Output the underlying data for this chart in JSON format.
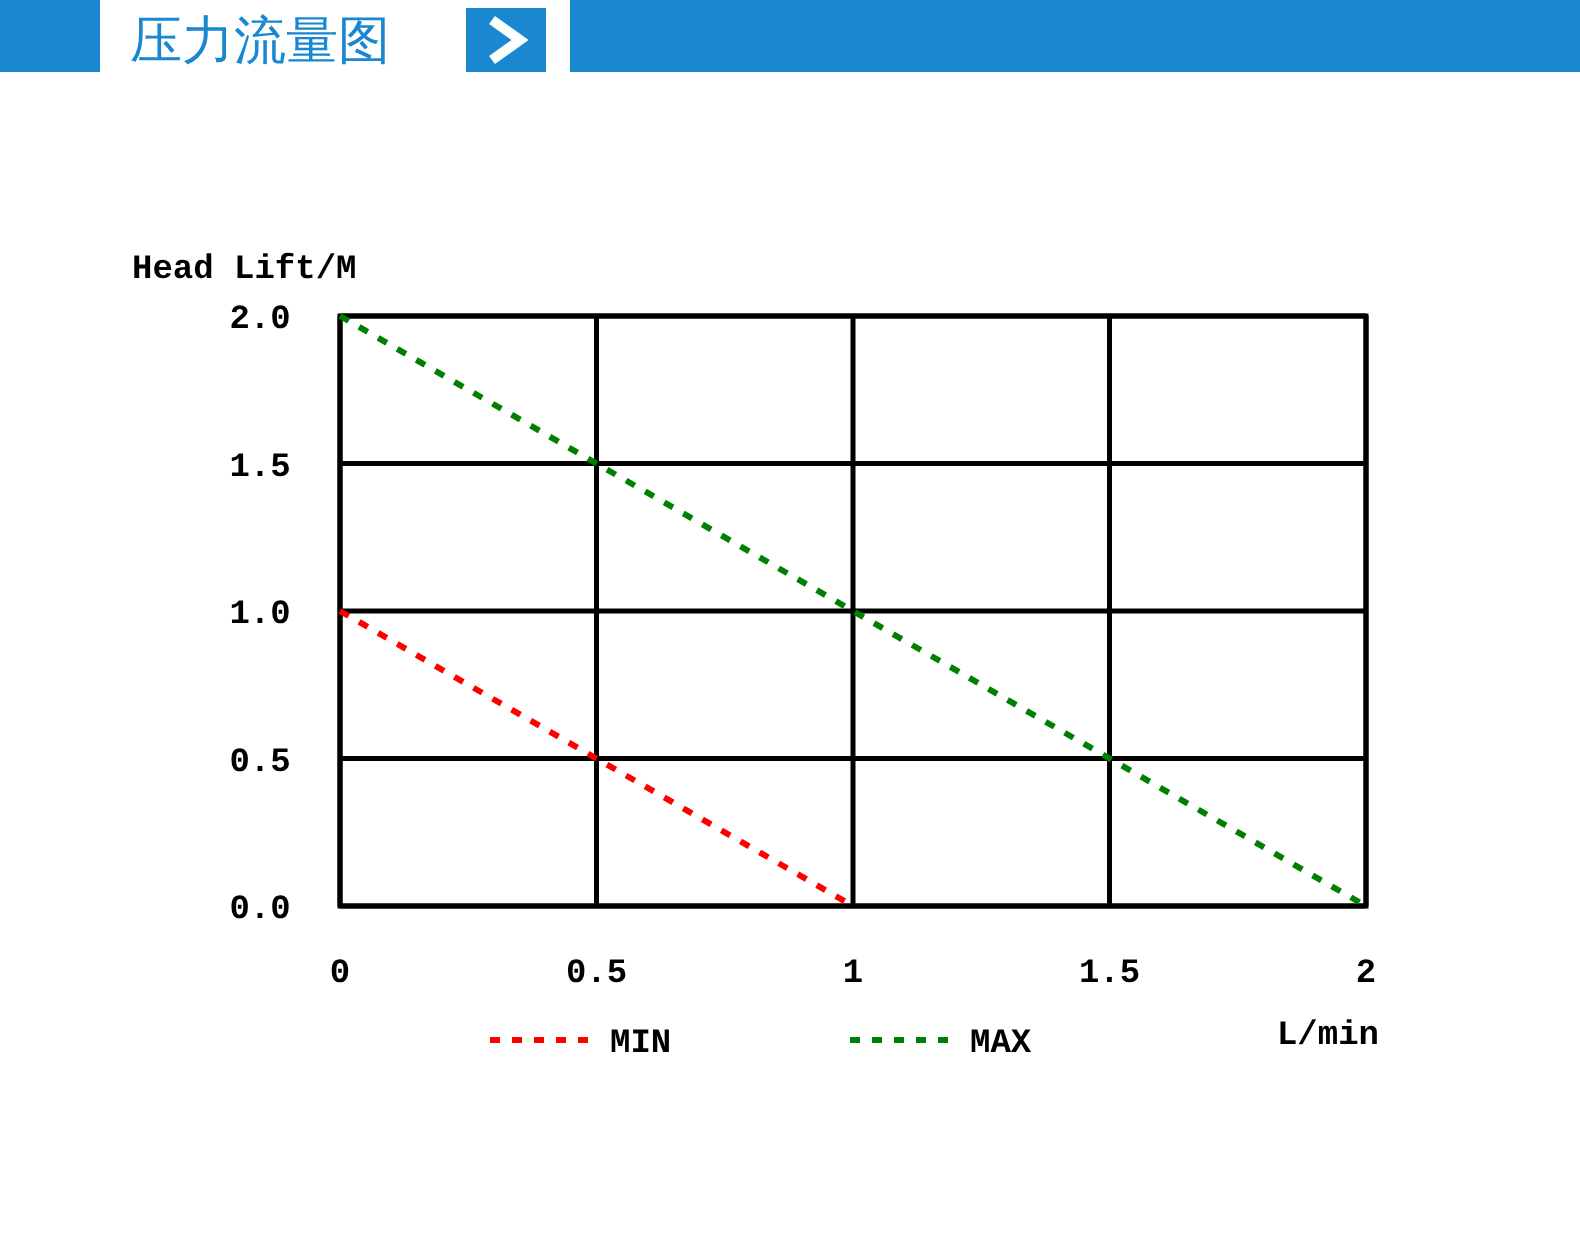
{
  "chart_data": {
    "type": "line",
    "title": "压力流量图",
    "xlabel": "L/min",
    "ylabel": "Head Lift/M",
    "xlim": [
      0,
      2
    ],
    "ylim": [
      0,
      2
    ],
    "xticks": [
      0,
      0.5,
      1,
      1.5,
      2
    ],
    "yticks": [
      {
        "value": 0,
        "label": "0.0"
      },
      {
        "value": 0.5,
        "label": "0.5"
      },
      {
        "value": 1,
        "label": "1.0"
      },
      {
        "value": 1.5,
        "label": "1.5"
      },
      {
        "value": 2,
        "label": "2.0"
      }
    ],
    "grid": true,
    "legend": "bottom",
    "line_style": "dashed",
    "series": [
      {
        "name": "MIN",
        "color": "#ff0000",
        "x": [
          0,
          1
        ],
        "values": [
          1,
          0
        ]
      },
      {
        "name": "MAX",
        "color": "#008000",
        "x": [
          0,
          2
        ],
        "values": [
          2,
          0
        ]
      }
    ]
  }
}
